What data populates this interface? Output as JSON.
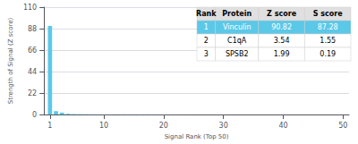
{
  "chart_data": {
    "type": "bar",
    "x": [
      1,
      2,
      3,
      4,
      5,
      6,
      7,
      8,
      9,
      10,
      11,
      12,
      13,
      14,
      15,
      16,
      17,
      18,
      19,
      20,
      21,
      22,
      23,
      24,
      25,
      26,
      27,
      28,
      29,
      30,
      31,
      32,
      33,
      34,
      35,
      36,
      37,
      38,
      39,
      40,
      41,
      42,
      43,
      44,
      45,
      46,
      47,
      48,
      49,
      50
    ],
    "values": [
      90.82,
      3.54,
      1.99,
      0.8,
      0.5,
      0.4,
      0.3,
      0.25,
      0.2,
      0.18,
      0.15,
      0.13,
      0.12,
      0.11,
      0.1,
      0.09,
      0.08,
      0.07,
      0.06,
      0.05,
      0.04,
      0.04,
      0.03,
      0.03,
      0.02,
      0.02,
      0.02,
      0.02,
      0.01,
      0.01,
      0.01,
      0.01,
      0.01,
      0.01,
      0.01,
      0.01,
      0.01,
      0.01,
      0.01,
      0.01,
      0.01,
      0.01,
      0.01,
      0.01,
      0.01,
      0.01,
      0.01,
      0.01,
      0.01,
      0.01
    ],
    "color": "#5bc8e8",
    "xlabel": "Signal Rank (Top 50)",
    "ylabel": "Strength of Signal (Z score)",
    "xlim": [
      0,
      51
    ],
    "xticks": [
      1,
      10,
      20,
      30,
      40,
      50
    ],
    "ylim": [
      0,
      110
    ],
    "yticks": [
      0,
      22,
      44,
      66,
      88,
      110
    ],
    "grid": true,
    "table": {
      "headers": [
        "Rank",
        "Protein",
        "Z score",
        "S score"
      ],
      "rows": [
        [
          "1",
          "Vinculin",
          "90.82",
          "87.28"
        ],
        [
          "2",
          "C1qA",
          "3.54",
          "1.55"
        ],
        [
          "3",
          "SPSB2",
          "1.99",
          "0.19"
        ]
      ],
      "header_color": "#e0e0e0",
      "highlight_color": "#5bc8e8"
    }
  }
}
